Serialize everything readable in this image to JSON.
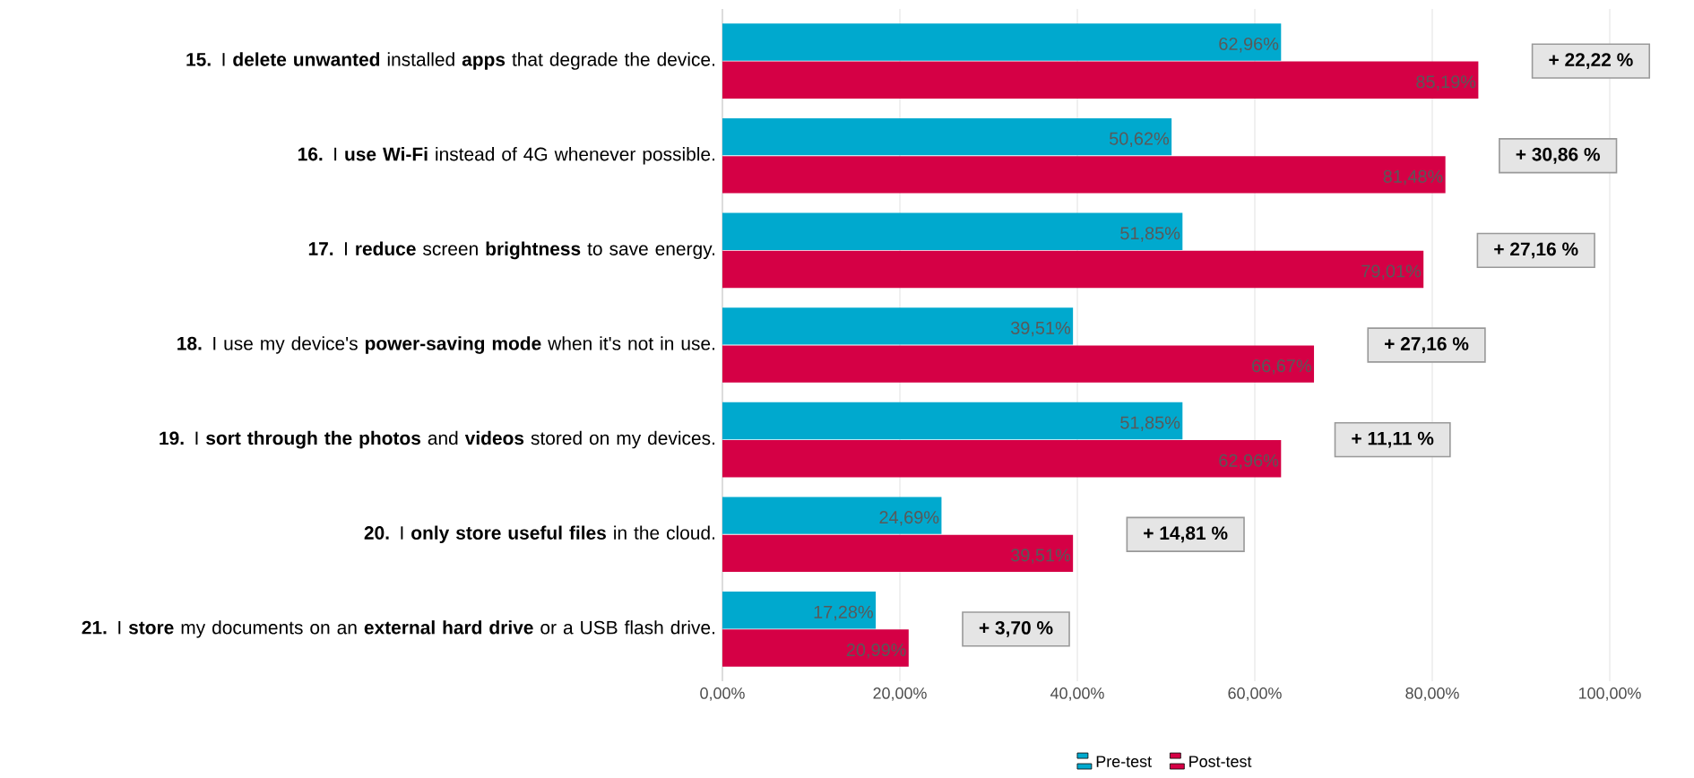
{
  "chart_data": {
    "type": "bar",
    "orientation": "horizontal",
    "categories": [
      "**15.** I **delete unwanted** installed **apps** that degrade the device.",
      "**16.** I **use Wi-Fi** instead of 4G whenever possible.",
      "**17.** I **reduce** screen **brightness** to save energy.",
      "**18.** I use my device's **power-saving mode** when it's not in use.",
      "**19.** I **sort through the photos** and **videos** stored on my devices.",
      "**20.** I **only store useful files** in the cloud.",
      "**21.** I **store** my documents on an **external hard drive** or a USB flash drive."
    ],
    "series": [
      {
        "name": "Pre-test",
        "color": "#00a9ce",
        "values": [
          62.96,
          50.62,
          51.85,
          39.51,
          51.85,
          24.69,
          17.28
        ],
        "value_labels": [
          "62,96%",
          "50,62%",
          "51,85%",
          "39,51%",
          "51,85%",
          "24,69%",
          "17,28%"
        ]
      },
      {
        "name": "Post-test",
        "color": "#d50045",
        "values": [
          85.19,
          81.48,
          79.01,
          66.67,
          62.96,
          39.51,
          20.99
        ],
        "value_labels": [
          "85,19%",
          "81,48%",
          "79,01%",
          "66,67%",
          "62,96%",
          "39,51%",
          "20,99%"
        ]
      }
    ],
    "xlim": [
      0,
      100
    ],
    "xticks": [
      {
        "value": 0,
        "label": "0,00%"
      },
      {
        "value": 20,
        "label": "20,00%"
      },
      {
        "value": 40,
        "label": "40,00%"
      },
      {
        "value": 60,
        "label": "60,00%"
      },
      {
        "value": 80,
        "label": "80,00%"
      },
      {
        "value": 100,
        "label": "100,00%"
      }
    ],
    "annotations": [
      "+ 22,22 %",
      "+ 30,86 %",
      "+ 27,16 %",
      "+ 27,16 %",
      "+ 11,11 %",
      "+ 14,81 %",
      "+ 3,70 %"
    ],
    "grid": "x",
    "legend": "bottom"
  }
}
